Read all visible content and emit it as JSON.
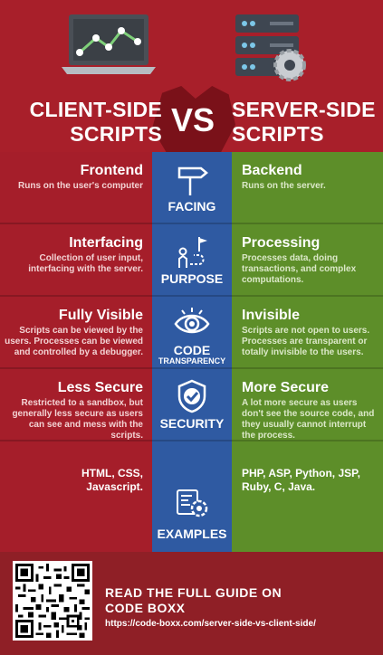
{
  "header": {
    "left_title_line1": "CLIENT-SIDE",
    "left_title_line2": "SCRIPTS",
    "vs": "VS",
    "right_title_line1": "SERVER-SIDE",
    "right_title_line2": "SCRIPTS",
    "left_icon": "laptop-chart-icon",
    "right_icon": "server-gear-icon"
  },
  "rows": [
    {
      "center_label": "FACING",
      "center_icon": "signpost-icon",
      "left_heading": "Frontend",
      "left_text": "Runs on the user's computer",
      "right_heading": "Backend",
      "right_text": "Runs on the server."
    },
    {
      "center_label": "PURPOSE",
      "center_icon": "path-to-flag-icon",
      "left_heading": "Interfacing",
      "left_text": "Collection of user input, interfacing with the server.",
      "right_heading": "Processing",
      "right_text": "Processes data, doing transactions, and complex computations."
    },
    {
      "center_label_line1": "CODE",
      "center_label_line2": "TRANSPARENCY",
      "center_icon": "eye-icon",
      "left_heading": "Fully Visible",
      "left_text": "Scripts can be viewed by the users. Processes can be viewed and  controlled by a debugger.",
      "right_heading": "Invisible",
      "right_text": "Scripts are not open to users. Processes are transparent or totally invisible to the users."
    },
    {
      "center_label": "SECURITY",
      "center_icon": "shield-check-icon",
      "left_heading": "Less Secure",
      "left_text": "Restricted to a sandbox, but generally less secure as users can see and mess with the scripts.",
      "right_heading": "More Secure",
      "right_text": "A lot more secure as users don't see the source code, and they usually cannot interrupt the process."
    },
    {
      "center_label": "EXAMPLES",
      "center_icon": "code-gear-icon",
      "left_text": "HTML, CSS, Javascript.",
      "right_text": "PHP, ASP, Python, JSP, Ruby, C, Java."
    }
  ],
  "footer": {
    "qr_icon": "qr-code-icon",
    "title": "READ THE FULL GUIDE ON CODE BOXX",
    "url": "https://code-boxx.com/server-side-vs-client-side/"
  },
  "colors": {
    "client_red": "#a51e2a",
    "center_blue": "#2f5aa2",
    "server_green": "#5d8e29",
    "background_dark_red": "#8f1f26"
  }
}
